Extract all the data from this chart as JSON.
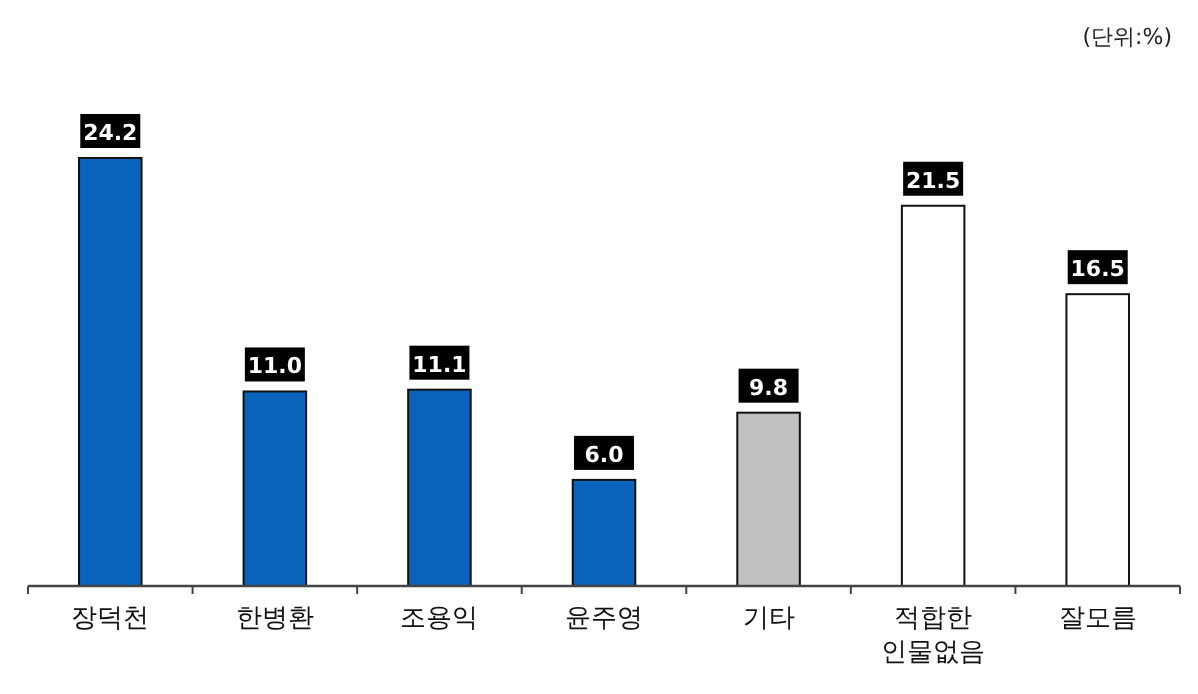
{
  "chart_data": {
    "type": "bar",
    "categories": [
      "장덕천",
      "한병환",
      "조용익",
      "윤주영",
      "기타",
      "적합한\n인물없음",
      "잘모름"
    ],
    "values": [
      24.2,
      11.0,
      11.1,
      6.0,
      9.8,
      21.5,
      16.5
    ],
    "colors": [
      "#0a64bc",
      "#0a64bc",
      "#0a64bc",
      "#0a64bc",
      "#c0c0c0",
      "#ffffff",
      "#ffffff"
    ],
    "value_labels": [
      "24.2",
      "11.0",
      "11.1",
      "6.0",
      "9.8",
      "21.5",
      "16.5"
    ],
    "annotations": [
      "(단위:%)"
    ]
  }
}
